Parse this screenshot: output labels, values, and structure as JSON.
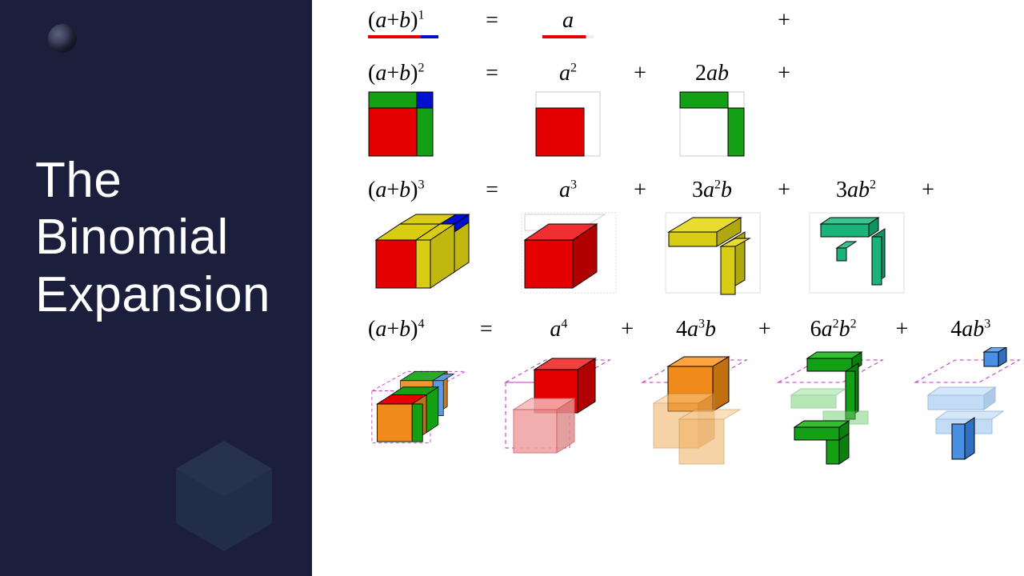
{
  "title": "The\nBinomial\nExpansion",
  "colors": {
    "panel_bg": "#1b1f3b",
    "text_light": "#ffffff",
    "red": "#e40000",
    "blue": "#0010d0",
    "green": "#14a015",
    "yellow": "#d8cc15",
    "teal": "#1ab37a",
    "orange": "#f08a1b",
    "lightblue": "#4a90e2",
    "magenta": "#c030c0",
    "outline": "#000000"
  },
  "rows": [
    {
      "lhs_base": "(a+b)",
      "lhs_exp": "1",
      "terms": [
        {
          "coef": "",
          "base": "a",
          "exp": ""
        },
        {
          "coef": "",
          "base": "",
          "exp": ""
        }
      ],
      "underline": true
    },
    {
      "lhs_base": "(a+b)",
      "lhs_exp": "2",
      "terms": [
        {
          "coef": "",
          "base": "a",
          "exp": "2"
        },
        {
          "coef": "2",
          "base": "ab",
          "exp": ""
        },
        {
          "coef": "",
          "base": "",
          "exp": ""
        }
      ]
    },
    {
      "lhs_base": "(a+b)",
      "lhs_exp": "3",
      "terms": [
        {
          "coef": "",
          "base": "a",
          "exp": "3"
        },
        {
          "coef": "3",
          "base": "a",
          "exp": "2",
          "tail": "b"
        },
        {
          "coef": "3",
          "base": "ab",
          "exp": "2"
        },
        {
          "coef": "",
          "base": "",
          "exp": ""
        }
      ]
    },
    {
      "lhs_base": "(a+b)",
      "lhs_exp": "4",
      "terms": [
        {
          "coef": "",
          "base": "a",
          "exp": "4"
        },
        {
          "coef": "4",
          "base": "a",
          "exp": "3",
          "tail": "b"
        },
        {
          "coef": "6",
          "base": "a",
          "exp": "2",
          "tail": "b",
          "tailexp": "2"
        },
        {
          "coef": "4",
          "base": "ab",
          "exp": "3"
        }
      ]
    }
  ]
}
